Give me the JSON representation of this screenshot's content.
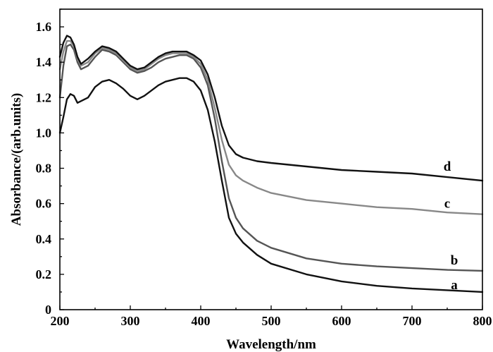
{
  "chart_data": {
    "type": "line",
    "title": "",
    "xlabel": "Wavelength/nm",
    "ylabel": "Absorbance/(arb.units)",
    "xlim": [
      200,
      800
    ],
    "ylim": [
      0,
      1.7
    ],
    "grid": false,
    "x_ticks": [
      200,
      300,
      400,
      500,
      600,
      700,
      800
    ],
    "x_tick_labels": [
      "200",
      "300",
      "400",
      "500",
      "600",
      "700",
      "800"
    ],
    "y_ticks": [
      0,
      0.2,
      0.4,
      0.6,
      0.8,
      1.0,
      1.2,
      1.4,
      1.6
    ],
    "y_tick_labels": [
      "0",
      "0.2",
      "0.4",
      "0.6",
      "0.8",
      "1.0",
      "1.2",
      "1.4",
      "1.6"
    ],
    "series": [
      {
        "name": "a",
        "color": "#111111",
        "x": [
          200,
          205,
          210,
          215,
          220,
          225,
          230,
          240,
          250,
          260,
          270,
          280,
          290,
          300,
          310,
          320,
          330,
          340,
          350,
          360,
          370,
          380,
          390,
          400,
          410,
          420,
          430,
          440,
          450,
          460,
          480,
          500,
          550,
          600,
          650,
          700,
          750,
          800
        ],
        "y": [
          1.0,
          1.09,
          1.19,
          1.22,
          1.21,
          1.17,
          1.18,
          1.2,
          1.26,
          1.29,
          1.3,
          1.28,
          1.25,
          1.21,
          1.19,
          1.21,
          1.24,
          1.27,
          1.29,
          1.3,
          1.31,
          1.31,
          1.29,
          1.24,
          1.13,
          0.95,
          0.73,
          0.52,
          0.43,
          0.38,
          0.31,
          0.26,
          0.2,
          0.16,
          0.135,
          0.12,
          0.11,
          0.1
        ]
      },
      {
        "name": "b",
        "color": "#555555",
        "x": [
          200,
          205,
          210,
          215,
          220,
          225,
          230,
          240,
          250,
          260,
          270,
          280,
          290,
          300,
          310,
          320,
          330,
          340,
          350,
          360,
          370,
          380,
          390,
          400,
          410,
          420,
          430,
          440,
          450,
          460,
          480,
          500,
          550,
          600,
          650,
          700,
          750,
          800
        ],
        "y": [
          1.2,
          1.38,
          1.49,
          1.5,
          1.47,
          1.4,
          1.36,
          1.38,
          1.43,
          1.47,
          1.46,
          1.44,
          1.4,
          1.36,
          1.34,
          1.35,
          1.37,
          1.4,
          1.42,
          1.43,
          1.44,
          1.44,
          1.42,
          1.37,
          1.27,
          1.08,
          0.84,
          0.63,
          0.52,
          0.46,
          0.39,
          0.35,
          0.29,
          0.26,
          0.245,
          0.235,
          0.225,
          0.22
        ]
      },
      {
        "name": "c",
        "color": "#888888",
        "x": [
          200,
          205,
          210,
          215,
          220,
          225,
          230,
          240,
          250,
          260,
          270,
          280,
          290,
          300,
          310,
          320,
          330,
          340,
          350,
          360,
          370,
          380,
          390,
          400,
          410,
          420,
          430,
          440,
          450,
          460,
          480,
          500,
          550,
          600,
          650,
          700,
          750,
          800
        ],
        "y": [
          1.36,
          1.46,
          1.52,
          1.52,
          1.49,
          1.42,
          1.38,
          1.4,
          1.45,
          1.48,
          1.47,
          1.45,
          1.41,
          1.37,
          1.35,
          1.36,
          1.39,
          1.42,
          1.44,
          1.45,
          1.45,
          1.45,
          1.43,
          1.39,
          1.3,
          1.14,
          0.96,
          0.82,
          0.76,
          0.73,
          0.69,
          0.66,
          0.62,
          0.6,
          0.58,
          0.57,
          0.55,
          0.54
        ]
      },
      {
        "name": "d",
        "color": "#111111",
        "x": [
          200,
          205,
          210,
          215,
          220,
          225,
          230,
          240,
          250,
          260,
          270,
          280,
          290,
          300,
          310,
          320,
          330,
          340,
          350,
          360,
          370,
          380,
          390,
          400,
          410,
          420,
          430,
          440,
          450,
          460,
          480,
          500,
          550,
          600,
          650,
          700,
          750,
          800
        ],
        "y": [
          1.43,
          1.51,
          1.55,
          1.54,
          1.5,
          1.43,
          1.39,
          1.42,
          1.46,
          1.49,
          1.48,
          1.46,
          1.42,
          1.38,
          1.36,
          1.37,
          1.4,
          1.43,
          1.45,
          1.46,
          1.46,
          1.46,
          1.44,
          1.41,
          1.33,
          1.2,
          1.04,
          0.93,
          0.88,
          0.86,
          0.84,
          0.83,
          0.81,
          0.79,
          0.78,
          0.77,
          0.75,
          0.73
        ]
      }
    ],
    "annotations": [
      {
        "text": "d",
        "series": "d",
        "x": 750,
        "y": 0.81
      },
      {
        "text": "c",
        "series": "c",
        "x": 750,
        "y": 0.6
      },
      {
        "text": "b",
        "series": "b",
        "x": 760,
        "y": 0.28
      },
      {
        "text": "a",
        "series": "a",
        "x": 760,
        "y": 0.14
      }
    ]
  }
}
